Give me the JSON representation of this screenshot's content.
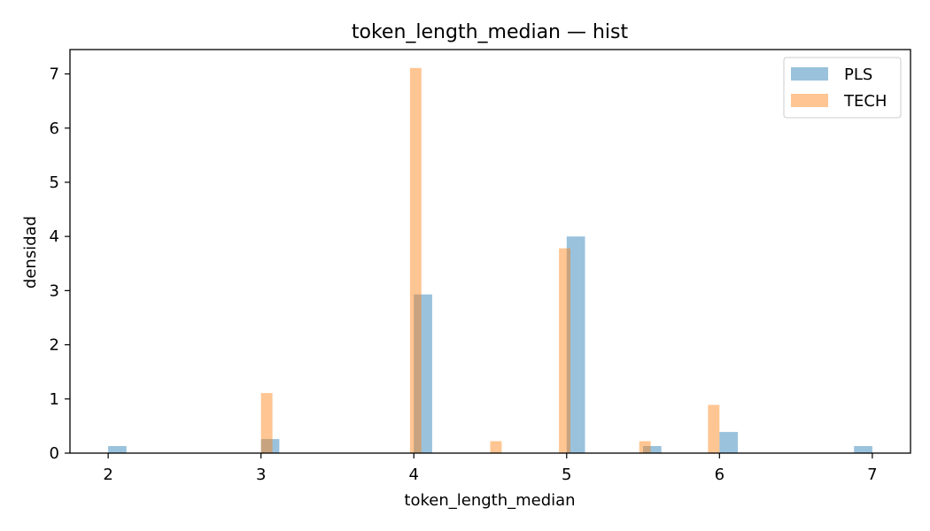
{
  "chart_data": {
    "type": "bar",
    "title": "token_length_median — hist",
    "xlabel": "token_length_median",
    "ylabel": "densidad",
    "xlim": [
      1.75,
      7.25
    ],
    "ylim": [
      0,
      7.45
    ],
    "xticks": [
      2,
      3,
      4,
      5,
      6,
      7
    ],
    "yticks": [
      0,
      1,
      2,
      3,
      4,
      5,
      6,
      7
    ],
    "grid": false,
    "legend_position": "top-right",
    "series": [
      {
        "name": "PLS",
        "color": "#1f77b4",
        "alpha": 0.45,
        "bins": [
          {
            "x0": 2.0,
            "x1": 2.12,
            "value": 0.13
          },
          {
            "x0": 3.0,
            "x1": 3.12,
            "value": 0.26
          },
          {
            "x0": 4.0,
            "x1": 4.12,
            "value": 2.93
          },
          {
            "x0": 5.0,
            "x1": 5.12,
            "value": 4.0
          },
          {
            "x0": 5.5,
            "x1": 5.62,
            "value": 0.13
          },
          {
            "x0": 6.0,
            "x1": 6.12,
            "value": 0.39
          },
          {
            "x0": 6.88,
            "x1": 7.0,
            "value": 0.13
          }
        ]
      },
      {
        "name": "TECH",
        "color": "#ff7f0e",
        "alpha": 0.45,
        "bins": [
          {
            "x0": 3.0,
            "x1": 3.075,
            "value": 1.11
          },
          {
            "x0": 3.975,
            "x1": 4.05,
            "value": 7.11
          },
          {
            "x0": 4.5,
            "x1": 4.575,
            "value": 0.22
          },
          {
            "x0": 4.95,
            "x1": 5.025,
            "value": 3.78
          },
          {
            "x0": 5.475,
            "x1": 5.55,
            "value": 0.22
          },
          {
            "x0": 5.925,
            "x1": 6.0,
            "value": 0.89
          }
        ]
      }
    ]
  }
}
